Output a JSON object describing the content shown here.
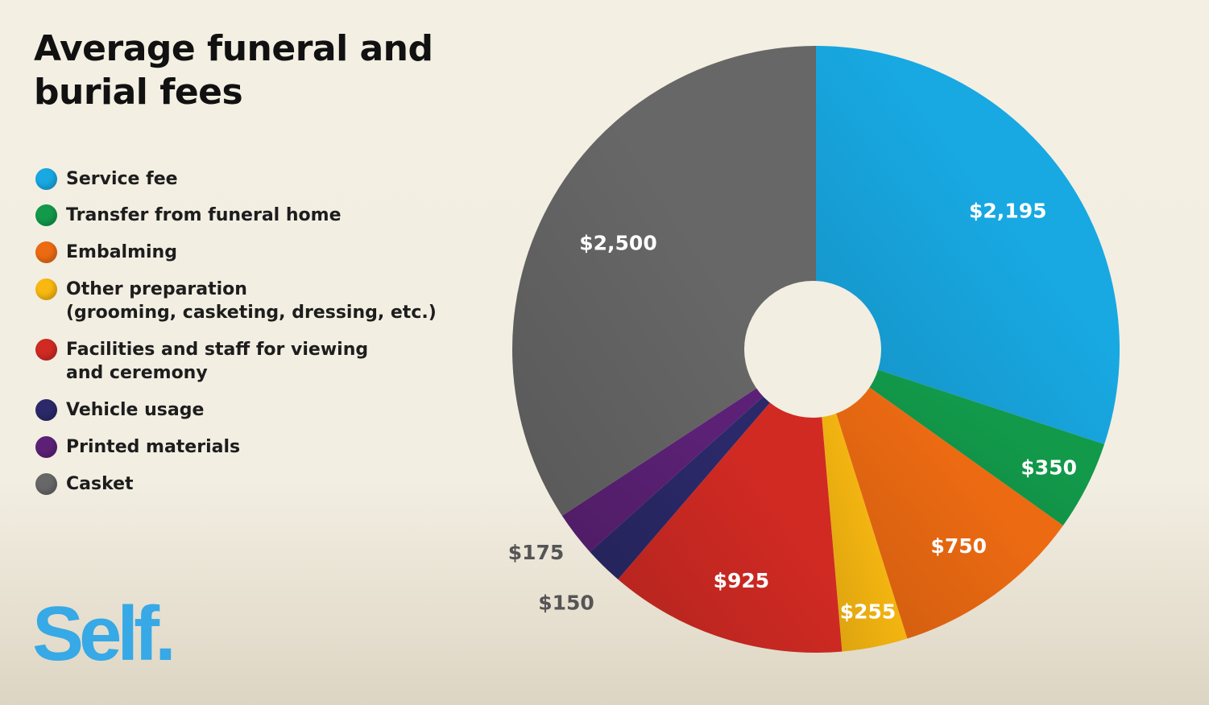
{
  "chart_data": {
    "type": "pie",
    "title": "Average funeral and burial fees",
    "categories": [
      "Service fee",
      "Transfer from funeral home",
      "Embalming",
      "Other preparation\n(grooming, casketing, dressing, etc.)",
      "Facilities and staff for viewing\nand ceremony",
      "Vehicle usage",
      "Printed materials",
      "Casket"
    ],
    "values": [
      2195,
      350,
      750,
      255,
      925,
      150,
      175,
      2500
    ],
    "data_labels": [
      "$2,195",
      "$350",
      "$750",
      "$255",
      "$925",
      "$150",
      "$175",
      "$2,500"
    ],
    "colors": [
      "#18a8e2",
      "#12994a",
      "#ec6a12",
      "#f8b811",
      "#d02a23",
      "#2b2969",
      "#5c2176",
      "#676767"
    ],
    "legend_placement": "left",
    "start": "top, clockwise",
    "donut_hole": true
  },
  "brand": {
    "logo_text": "Self",
    "logo_dot": ".",
    "color": "#36a9e6"
  }
}
